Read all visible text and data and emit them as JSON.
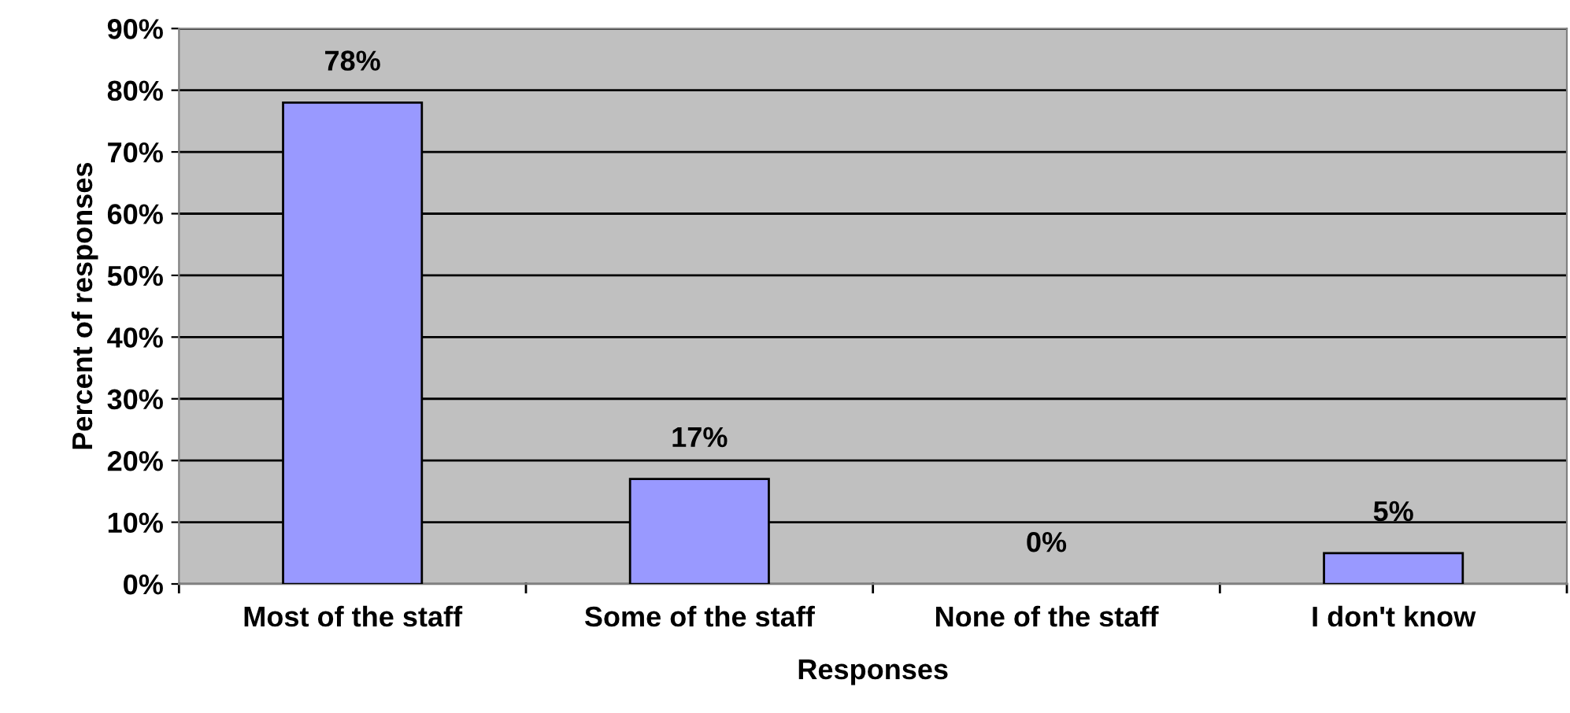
{
  "chart_data": {
    "type": "bar",
    "xlabel": "Responses",
    "ylabel": "Percent of responses",
    "categories": [
      "Most of the staff",
      "Some of the staff",
      "None of the staff",
      "I don't know"
    ],
    "values": [
      78,
      17,
      0,
      5
    ],
    "color": "#9999ff",
    "value_labels": [
      "78%",
      "17%",
      "0%",
      "5%"
    ],
    "ylim": [
      0,
      90
    ],
    "yticks": [
      {
        "value": 0,
        "label": "0%"
      },
      {
        "value": 10,
        "label": "10%"
      },
      {
        "value": 20,
        "label": "20%"
      },
      {
        "value": 30,
        "label": "30%"
      },
      {
        "value": 40,
        "label": "40%"
      },
      {
        "value": 50,
        "label": "50%"
      },
      {
        "value": 60,
        "label": "60%"
      },
      {
        "value": 70,
        "label": "70%"
      },
      {
        "value": 80,
        "label": "80%"
      },
      {
        "value": 90,
        "label": "90%"
      }
    ],
    "grid": "y",
    "legend": false
  }
}
